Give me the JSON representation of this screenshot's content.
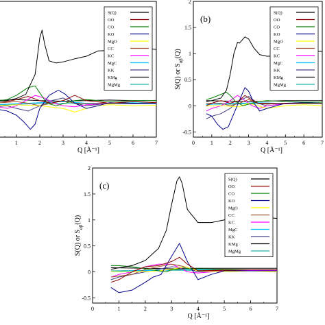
{
  "chart_data": [
    {
      "type": "line",
      "panel_label": "",
      "xlabel": "Q [Å⁻¹]",
      "ylabel": "",
      "xlim": [
        0,
        7
      ],
      "ylim": [
        -0.6,
        2.0
      ],
      "xticks": [
        "1",
        "2",
        "3",
        "4",
        "5",
        "6",
        "7"
      ],
      "yticks": [],
      "legend_position": "top-right",
      "series": [
        {
          "name": "S(Q)",
          "color": "#000000",
          "x": [
            0,
            0.6,
            1.0,
            1.4,
            1.8,
            2.0,
            2.1,
            2.2,
            2.4,
            2.7,
            3.0,
            3.5,
            4.0,
            4.5,
            5.0,
            5.5,
            6.0,
            6.5,
            7.0
          ],
          "y": [
            0.08,
            0.1,
            0.14,
            0.22,
            0.6,
            1.3,
            1.45,
            1.2,
            0.86,
            0.82,
            0.84,
            0.9,
            0.95,
            1.05,
            1.06,
            1.05,
            1.08,
            1.1,
            1.08
          ]
        },
        {
          "name": "OO",
          "color": "#8b0000",
          "x": [
            0,
            0.6,
            1.0,
            1.5,
            2.0,
            2.5,
            3.0,
            3.5,
            4.0,
            5.0,
            6.0,
            7.0
          ],
          "y": [
            0.1,
            0.08,
            0.12,
            0.18,
            0.1,
            0.05,
            0.1,
            0.2,
            0.1,
            0.05,
            0.08,
            0.06
          ]
        },
        {
          "name": "CO",
          "color": "#008000",
          "x": [
            0,
            0.6,
            1.0,
            1.5,
            1.8,
            2.0,
            2.3,
            2.7,
            3.0,
            3.5,
            4.0,
            5.0,
            6.0,
            7.0
          ],
          "y": [
            0.08,
            0.12,
            0.2,
            0.35,
            0.38,
            0.25,
            0.05,
            0.0,
            0.04,
            0.1,
            0.12,
            0.08,
            0.1,
            0.1
          ]
        },
        {
          "name": "KO",
          "color": "#00008b",
          "x": [
            0,
            0.6,
            1.0,
            1.3,
            1.6,
            1.8,
            2.0,
            2.4,
            2.8,
            3.1,
            3.5,
            4.0,
            4.5,
            5.0,
            6.0,
            7.0
          ],
          "y": [
            -0.05,
            -0.1,
            -0.18,
            -0.3,
            -0.45,
            -0.35,
            -0.05,
            0.2,
            0.3,
            0.22,
            0.05,
            -0.05,
            0.0,
            0.06,
            0.05,
            0.05
          ]
        },
        {
          "name": "MgO",
          "color": "#ffff00",
          "x": [
            0,
            1.0,
            2.0,
            3.0,
            3.5,
            4.0,
            4.5,
            5.0,
            6.0,
            7.0
          ],
          "y": [
            0.0,
            0.02,
            0.0,
            -0.05,
            -0.12,
            -0.05,
            0.0,
            0.02,
            0.0,
            0.01
          ]
        },
        {
          "name": "CC",
          "color": "#a0522d",
          "x": [
            0,
            1.0,
            1.5,
            2.0,
            2.5,
            3.0,
            3.5,
            4.0,
            5.0,
            6.0,
            7.0
          ],
          "y": [
            0.05,
            0.08,
            0.05,
            0.0,
            0.05,
            0.1,
            0.05,
            0.04,
            0.05,
            0.05,
            0.05
          ]
        },
        {
          "name": "KC",
          "color": "#ff00ff",
          "x": [
            0,
            0.6,
            1.0,
            1.4,
            1.8,
            2.2,
            2.6,
            3.0,
            3.5,
            4.0,
            5.0,
            6.0,
            7.0
          ],
          "y": [
            0.0,
            -0.05,
            0.0,
            0.1,
            0.2,
            0.15,
            0.05,
            0.0,
            -0.02,
            0.02,
            0.05,
            0.05,
            0.05
          ]
        },
        {
          "name": "MgC",
          "color": "#00bfff",
          "x": [
            0,
            1.0,
            2.0,
            3.0,
            4.0,
            5.0,
            6.0,
            7.0
          ],
          "y": [
            0.02,
            0.04,
            0.06,
            0.08,
            0.05,
            0.05,
            0.06,
            0.05
          ]
        },
        {
          "name": "KK",
          "color": "#404080",
          "x": [
            0,
            0.6,
            1.0,
            1.5,
            2.0,
            2.5,
            3.0,
            3.5,
            4.0,
            5.0,
            6.0,
            7.0
          ],
          "y": [
            -0.02,
            0.0,
            -0.05,
            -0.1,
            0.0,
            0.1,
            0.15,
            0.05,
            0.0,
            0.05,
            0.04,
            0.05
          ]
        },
        {
          "name": "KMg",
          "color": "#000000",
          "x": [
            0,
            1.0,
            2.0,
            3.0,
            4.0,
            5.0,
            6.0,
            7.0
          ],
          "y": [
            0.1,
            0.12,
            0.1,
            0.09,
            0.1,
            0.11,
            0.1,
            0.1
          ]
        },
        {
          "name": "MgMg",
          "color": "#20b2aa",
          "x": [
            0,
            1.0,
            2.0,
            3.0,
            4.0,
            5.0,
            6.0,
            7.0
          ],
          "y": [
            0.02,
            0.03,
            0.04,
            0.05,
            0.04,
            0.04,
            0.04,
            0.04
          ]
        }
      ]
    },
    {
      "type": "line",
      "panel_label": "(b)",
      "xlabel": "Q [Å⁻¹]",
      "ylabel": "S(Q) or S_αβ(Q)",
      "xlim": [
        0,
        7
      ],
      "ylim": [
        -0.6,
        2.0
      ],
      "xticks": [
        "0",
        "1",
        "2",
        "3",
        "4",
        "5",
        "6",
        "7"
      ],
      "yticks": [
        "-0.5",
        "0",
        "0.5",
        "1",
        "1.5",
        "2"
      ],
      "legend_position": "top-right",
      "series": [
        {
          "name": "S(Q)",
          "color": "#000000",
          "x": [
            0.7,
            1.0,
            1.5,
            1.8,
            2.0,
            2.2,
            2.4,
            2.5,
            2.8,
            3.0,
            3.3,
            3.6,
            4.0,
            4.5,
            5.0,
            5.5,
            6.0,
            6.5,
            7.0
          ],
          "y": [
            0.08,
            0.1,
            0.15,
            0.3,
            0.6,
            1.0,
            1.22,
            1.2,
            1.32,
            1.28,
            1.1,
            0.98,
            0.95,
            0.95,
            1.0,
            1.02,
            1.04,
            1.05,
            1.04
          ]
        },
        {
          "name": "OO",
          "color": "#8b0000",
          "x": [
            0.7,
            1.0,
            1.5,
            2.0,
            2.5,
            2.8,
            3.0,
            3.5,
            4.0,
            5.0,
            6.0,
            7.0
          ],
          "y": [
            0.0,
            0.05,
            0.1,
            0.05,
            0.1,
            0.2,
            0.15,
            0.05,
            0.05,
            0.04,
            0.05,
            0.05
          ]
        },
        {
          "name": "CO",
          "color": "#008000",
          "x": [
            0.7,
            1.0,
            1.5,
            1.8,
            2.0,
            2.3,
            2.7,
            3.0,
            3.5,
            4.0,
            5.0,
            6.0,
            7.0
          ],
          "y": [
            0.12,
            0.15,
            0.22,
            0.26,
            0.2,
            0.08,
            0.0,
            0.03,
            0.08,
            0.1,
            0.08,
            0.07,
            0.07
          ]
        },
        {
          "name": "KO",
          "color": "#00008b",
          "x": [
            0.7,
            1.0,
            1.3,
            1.6,
            1.9,
            2.2,
            2.5,
            2.8,
            3.0,
            3.3,
            3.6,
            4.0,
            4.5,
            5.0,
            6.0,
            7.0
          ],
          "y": [
            -0.15,
            -0.2,
            -0.35,
            -0.45,
            -0.4,
            -0.15,
            0.1,
            0.35,
            0.28,
            0.05,
            -0.1,
            -0.05,
            0.0,
            0.05,
            0.06,
            0.05
          ]
        },
        {
          "name": "MgO",
          "color": "#ffff00",
          "x": [
            0.7,
            1.5,
            2.5,
            3.0,
            3.5,
            4.0,
            5.0,
            6.0,
            7.0
          ],
          "y": [
            0.0,
            0.0,
            -0.02,
            0.05,
            0.0,
            -0.05,
            0.0,
            0.02,
            0.0
          ]
        },
        {
          "name": "CC",
          "color": "#a0522d",
          "x": [
            0.7,
            1.5,
            2.0,
            2.5,
            3.0,
            3.5,
            4.0,
            5.0,
            6.0,
            7.0
          ],
          "y": [
            0.05,
            0.05,
            0.0,
            0.05,
            0.12,
            0.05,
            0.03,
            0.05,
            0.05,
            0.05
          ]
        },
        {
          "name": "KC",
          "color": "#ff00ff",
          "x": [
            0.7,
            1.0,
            1.5,
            2.0,
            2.4,
            2.8,
            3.2,
            3.6,
            4.0,
            5.0,
            6.0,
            7.0
          ],
          "y": [
            -0.1,
            -0.05,
            0.0,
            0.1,
            0.2,
            0.1,
            0.0,
            -0.05,
            0.0,
            0.04,
            0.05,
            0.05
          ]
        },
        {
          "name": "MgC",
          "color": "#00bfff",
          "x": [
            0.7,
            1.5,
            2.5,
            3.5,
            4.5,
            5.5,
            7.0
          ],
          "y": [
            0.02,
            0.04,
            0.05,
            0.06,
            0.05,
            0.05,
            0.05
          ]
        },
        {
          "name": "KK",
          "color": "#404080",
          "x": [
            0.7,
            1.0,
            1.5,
            2.0,
            2.5,
            3.0,
            3.5,
            4.0,
            5.0,
            6.0,
            7.0
          ],
          "y": [
            -0.25,
            -0.2,
            -0.15,
            -0.05,
            0.1,
            0.18,
            0.05,
            0.0,
            0.04,
            0.05,
            0.05
          ]
        },
        {
          "name": "KMg",
          "color": "#000000",
          "x": [
            0.7,
            2.0,
            3.0,
            4.0,
            5.0,
            6.0,
            7.0
          ],
          "y": [
            0.1,
            0.09,
            0.08,
            0.09,
            0.1,
            0.1,
            0.1
          ]
        },
        {
          "name": "MgMg",
          "color": "#20b2aa",
          "x": [
            0.7,
            2.0,
            3.0,
            4.0,
            5.0,
            6.0,
            7.0
          ],
          "y": [
            0.03,
            0.03,
            0.04,
            0.04,
            0.04,
            0.04,
            0.04
          ]
        }
      ]
    },
    {
      "type": "line",
      "panel_label": "(c)",
      "xlabel": "Q [Å⁻¹]",
      "ylabel": "S(Q) or S_αβ(Q)",
      "xlim": [
        0,
        7
      ],
      "ylim": [
        -0.6,
        2.0
      ],
      "xticks": [
        "0",
        "1",
        "2",
        "3",
        "4",
        "5",
        "6",
        "7"
      ],
      "yticks": [
        "-0.5",
        "0",
        "0.5",
        "1",
        "1.5",
        "2"
      ],
      "legend_position": "top-right",
      "series": [
        {
          "name": "S(Q)",
          "color": "#000000",
          "x": [
            0.7,
            1.0,
            1.5,
            2.0,
            2.5,
            2.8,
            3.0,
            3.2,
            3.3,
            3.4,
            3.6,
            4.0,
            4.5,
            5.0,
            5.5,
            6.0,
            6.5,
            7.0
          ],
          "y": [
            0.05,
            0.08,
            0.12,
            0.22,
            0.45,
            0.8,
            1.3,
            1.75,
            1.83,
            1.7,
            1.2,
            0.95,
            0.95,
            1.0,
            1.05,
            1.05,
            1.05,
            1.03
          ]
        },
        {
          "name": "OO",
          "color": "#8b0000",
          "x": [
            0.7,
            1.0,
            1.5,
            2.0,
            2.5,
            3.0,
            3.3,
            3.6,
            4.0,
            5.0,
            6.0,
            7.0
          ],
          "y": [
            -0.2,
            -0.15,
            0.0,
            0.1,
            0.12,
            0.2,
            0.28,
            0.15,
            0.02,
            0.03,
            0.04,
            0.04
          ]
        },
        {
          "name": "CO",
          "color": "#008000",
          "x": [
            0.7,
            1.0,
            1.5,
            2.0,
            2.5,
            2.8,
            3.0,
            3.5,
            4.0,
            5.0,
            6.0,
            7.0
          ],
          "y": [
            0.12,
            0.12,
            0.1,
            0.06,
            0.02,
            0.0,
            0.04,
            0.06,
            0.06,
            0.05,
            0.04,
            0.04
          ]
        },
        {
          "name": "KO",
          "color": "#00008b",
          "x": [
            0.7,
            1.0,
            1.5,
            2.0,
            2.3,
            2.6,
            3.0,
            3.3,
            3.6,
            4.0,
            4.5,
            5.0,
            6.0,
            7.0
          ],
          "y": [
            -0.3,
            -0.4,
            -0.35,
            -0.2,
            -0.1,
            -0.05,
            0.3,
            0.55,
            0.2,
            -0.15,
            -0.05,
            0.02,
            0.02,
            0.02
          ]
        },
        {
          "name": "MgO",
          "color": "#ffff00",
          "x": [
            0.7,
            1.5,
            2.5,
            3.0,
            3.5,
            4.0,
            5.0,
            6.0,
            7.0
          ],
          "y": [
            0.0,
            0.0,
            0.02,
            0.05,
            0.1,
            0.02,
            0.0,
            0.02,
            0.0
          ]
        },
        {
          "name": "CC",
          "color": "#a0522d",
          "x": [
            0.7,
            1.5,
            2.0,
            2.5,
            3.0,
            3.5,
            4.0,
            5.0,
            6.0,
            7.0
          ],
          "y": [
            -0.1,
            -0.05,
            0.05,
            0.1,
            0.15,
            0.1,
            0.02,
            0.04,
            0.04,
            0.04
          ]
        },
        {
          "name": "KC",
          "color": "#ff00ff",
          "x": [
            0.7,
            1.0,
            1.5,
            2.0,
            2.5,
            3.0,
            3.3,
            3.6,
            4.0,
            5.0,
            6.0,
            7.0
          ],
          "y": [
            -0.1,
            -0.05,
            0.0,
            0.1,
            0.15,
            0.15,
            0.08,
            0.0,
            -0.02,
            0.02,
            0.03,
            0.03
          ]
        },
        {
          "name": "MgC",
          "color": "#00bfff",
          "x": [
            0.7,
            1.5,
            2.5,
            3.5,
            4.5,
            5.5,
            7.0
          ],
          "y": [
            0.0,
            0.02,
            0.03,
            0.05,
            0.04,
            0.04,
            0.04
          ]
        },
        {
          "name": "KK",
          "color": "#404080",
          "x": [
            0.7,
            1.0,
            1.5,
            2.0,
            2.5,
            3.0,
            3.5,
            4.0,
            5.0,
            6.0,
            7.0
          ],
          "y": [
            -0.15,
            -0.1,
            -0.05,
            0.0,
            0.05,
            0.1,
            0.08,
            0.0,
            0.02,
            0.03,
            0.03
          ]
        },
        {
          "name": "KMg",
          "color": "#000000",
          "x": [
            0.7,
            2.0,
            3.0,
            4.0,
            5.0,
            6.0,
            7.0
          ],
          "y": [
            0.08,
            0.07,
            0.06,
            0.07,
            0.07,
            0.07,
            0.07
          ]
        },
        {
          "name": "MgMg",
          "color": "#20b2aa",
          "x": [
            0.7,
            2.0,
            3.0,
            4.0,
            5.0,
            6.0,
            7.0
          ],
          "y": [
            0.02,
            0.03,
            0.03,
            0.03,
            0.03,
            0.03,
            0.03
          ]
        }
      ]
    }
  ]
}
